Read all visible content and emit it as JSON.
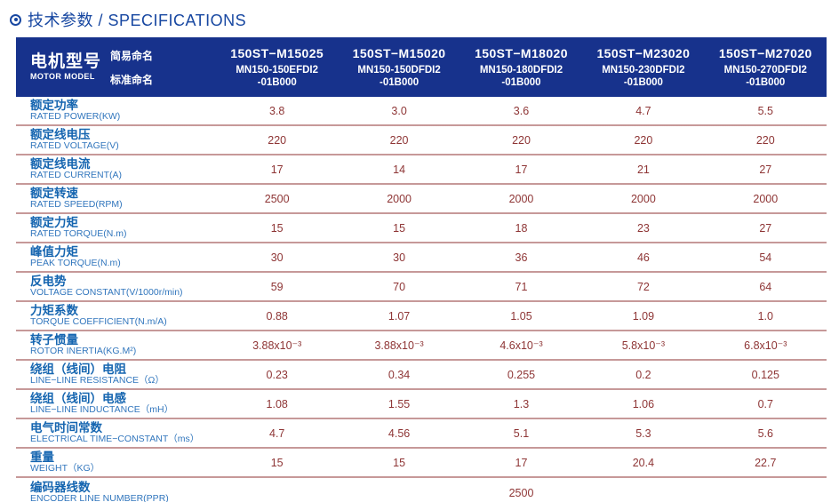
{
  "title": {
    "icon": "circle-dot-icon",
    "text": "技术参数 / SPECIFICATIONS"
  },
  "colors": {
    "header_background": "#17328c",
    "header_text": "#ffffff",
    "title_blue": "#1747a1",
    "label_cn_blue": "#1565b0",
    "label_en_blue": "#3176bd",
    "value_maroon": "#8e3535",
    "divider_maroon": "#8a3434"
  },
  "table": {
    "model_header": {
      "cn": "电机型号",
      "en": "MOTOR MODEL",
      "simple_label": "简易命名",
      "standard_label": "标准命名"
    },
    "models": [
      {
        "simple": "150ST−M15025",
        "standard_line1": "MN150-150EFDI2",
        "standard_line2": "-01B000"
      },
      {
        "simple": "150ST−M15020",
        "standard_line1": "MN150-150DFDI2",
        "standard_line2": "-01B000"
      },
      {
        "simple": "150ST−M18020",
        "standard_line1": "MN150-180DFDI2",
        "standard_line2": "-01B000"
      },
      {
        "simple": "150ST−M23020",
        "standard_line1": "MN150-230DFDI2",
        "standard_line2": "-01B000"
      },
      {
        "simple": "150ST−M27020",
        "standard_line1": "MN150-270DFDI2",
        "standard_line2": "-01B000"
      }
    ],
    "rows": [
      {
        "cn": "额定功率",
        "en": "RATED POWER(KW)",
        "values": [
          "3.8",
          "3.0",
          "3.6",
          "4.7",
          "5.5"
        ]
      },
      {
        "cn": "额定线电压",
        "en": "RATED VOLTAGE(V)",
        "values": [
          "220",
          "220",
          "220",
          "220",
          "220"
        ]
      },
      {
        "cn": "额定线电流",
        "en": "RATED CURRENT(A)",
        "values": [
          "17",
          "14",
          "17",
          "21",
          "27"
        ]
      },
      {
        "cn": "额定转速",
        "en": "RATED SPEED(RPM)",
        "values": [
          "2500",
          "2000",
          "2000",
          "2000",
          "2000"
        ]
      },
      {
        "cn": "额定力矩",
        "en": "RATED TORQUE(N.m)",
        "values": [
          "15",
          "15",
          "18",
          "23",
          "27"
        ]
      },
      {
        "cn": "峰值力矩",
        "en": "PEAK TORQUE(N.m)",
        "values": [
          "30",
          "30",
          "36",
          "46",
          "54"
        ]
      },
      {
        "cn": "反电势",
        "en": "VOLTAGE CONSTANT(V/1000r/min)",
        "values": [
          "59",
          "70",
          "71",
          "72",
          "64"
        ]
      },
      {
        "cn": "力矩系数",
        "en": "TORQUE COEFFICIENT(N.m/A)",
        "values": [
          "0.88",
          "1.07",
          "1.05",
          "1.09",
          "1.0"
        ]
      },
      {
        "cn": "转子惯量",
        "en": "ROTOR INERTIA(KG.M²)",
        "values": [
          "3.88x10⁻³",
          "3.88x10⁻³",
          "4.6x10⁻³",
          "5.8x10⁻³",
          "6.8x10⁻³"
        ]
      },
      {
        "cn": "绕组（线间）电阻",
        "en": "LINE−LINE RESISTANCE（Ω）",
        "values": [
          "0.23",
          "0.34",
          "0.255",
          "0.2",
          "0.125"
        ]
      },
      {
        "cn": "绕组（线间）电感",
        "en": "LINE−LINE INDUCTANCE（mH）",
        "values": [
          "1.08",
          "1.55",
          "1.3",
          "1.06",
          "0.7"
        ]
      },
      {
        "cn": "电气时间常数",
        "en": "ELECTRICAL TIME−CONSTANT（ms）",
        "values": [
          "4.7",
          "4.56",
          "5.1",
          "5.3",
          "5.6"
        ]
      },
      {
        "cn": "重量",
        "en": "WEIGHT（KG）",
        "values": [
          "15",
          "15",
          "17",
          "20.4",
          "22.7"
        ]
      }
    ],
    "merged_row": {
      "cn": "编码器线数",
      "en": "ENCODER LINE NUMBER(PPR)",
      "value": "2500"
    }
  }
}
